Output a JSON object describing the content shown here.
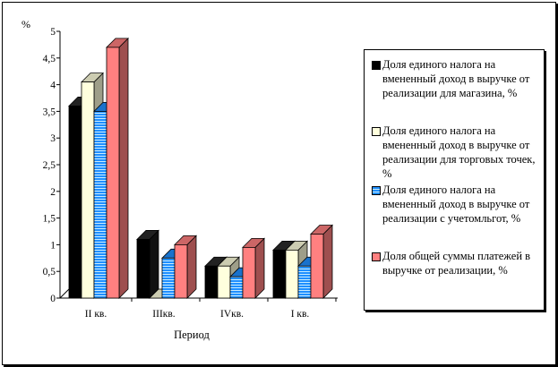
{
  "chart_data": {
    "type": "bar",
    "ylabel": "%",
    "xlabel": "Период",
    "categories": [
      "II кв.",
      "IIIкв.",
      "IVкв.",
      "I кв."
    ],
    "ylim": [
      0,
      5
    ],
    "yticks": [
      "0",
      "0,5",
      "1",
      "1,5",
      "2",
      "2,5",
      "3",
      "3,5",
      "4",
      "4,5",
      "5"
    ],
    "grid": false,
    "legend_position": "right",
    "series": [
      {
        "name": "Доля единого налога на вмененный доход в выручке от реализации для магазина, %",
        "color": "#000000",
        "values": [
          3.6,
          1.1,
          0.6,
          0.9
        ]
      },
      {
        "name": "Доля единого налога на вмененный доход в выручке от реализации для торговых точек, %",
        "color": "#ffffdd",
        "values": [
          4.05,
          0.0,
          0.6,
          0.9
        ]
      },
      {
        "name": "Доля единого налога на вмененный доход в выручке от реализации с учетомльгот, %",
        "color": "#1f8fff",
        "values": [
          3.5,
          0.75,
          0.4,
          0.6
        ]
      },
      {
        "name": "Доля общей суммы платежей в выручке от реализации, %",
        "color": "#ff8080",
        "values": [
          4.7,
          1.0,
          0.95,
          1.2
        ]
      }
    ]
  }
}
